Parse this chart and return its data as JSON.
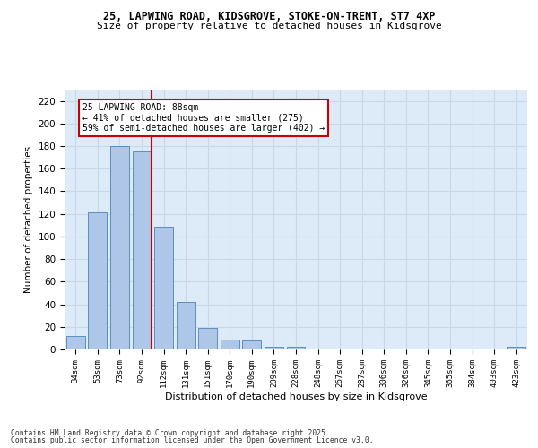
{
  "title_line1": "25, LAPWING ROAD, KIDSGROVE, STOKE-ON-TRENT, ST7 4XP",
  "title_line2": "Size of property relative to detached houses in Kidsgrove",
  "xlabel": "Distribution of detached houses by size in Kidsgrove",
  "ylabel": "Number of detached properties",
  "categories": [
    "34sqm",
    "53sqm",
    "73sqm",
    "92sqm",
    "112sqm",
    "131sqm",
    "151sqm",
    "170sqm",
    "190sqm",
    "209sqm",
    "228sqm",
    "248sqm",
    "267sqm",
    "287sqm",
    "306sqm",
    "326sqm",
    "345sqm",
    "365sqm",
    "384sqm",
    "403sqm",
    "423sqm"
  ],
  "values": [
    12,
    121,
    180,
    175,
    109,
    42,
    19,
    9,
    8,
    2,
    2,
    0,
    1,
    1,
    0,
    0,
    0,
    0,
    0,
    0,
    2
  ],
  "bar_color": "#aec6e8",
  "bar_edge_color": "#5a8fc0",
  "vline_color": "#cc0000",
  "vline_pos": 3.43,
  "annotation_text": "25 LAPWING ROAD: 88sqm\n← 41% of detached houses are smaller (275)\n59% of semi-detached houses are larger (402) →",
  "ylim": [
    0,
    230
  ],
  "yticks": [
    0,
    20,
    40,
    60,
    80,
    100,
    120,
    140,
    160,
    180,
    200,
    220
  ],
  "grid_color": "#c8d8e8",
  "bg_color": "#ddeaf7",
  "fig_bg": "#ffffff",
  "footer_line1": "Contains HM Land Registry data © Crown copyright and database right 2025.",
  "footer_line2": "Contains public sector information licensed under the Open Government Licence v3.0."
}
